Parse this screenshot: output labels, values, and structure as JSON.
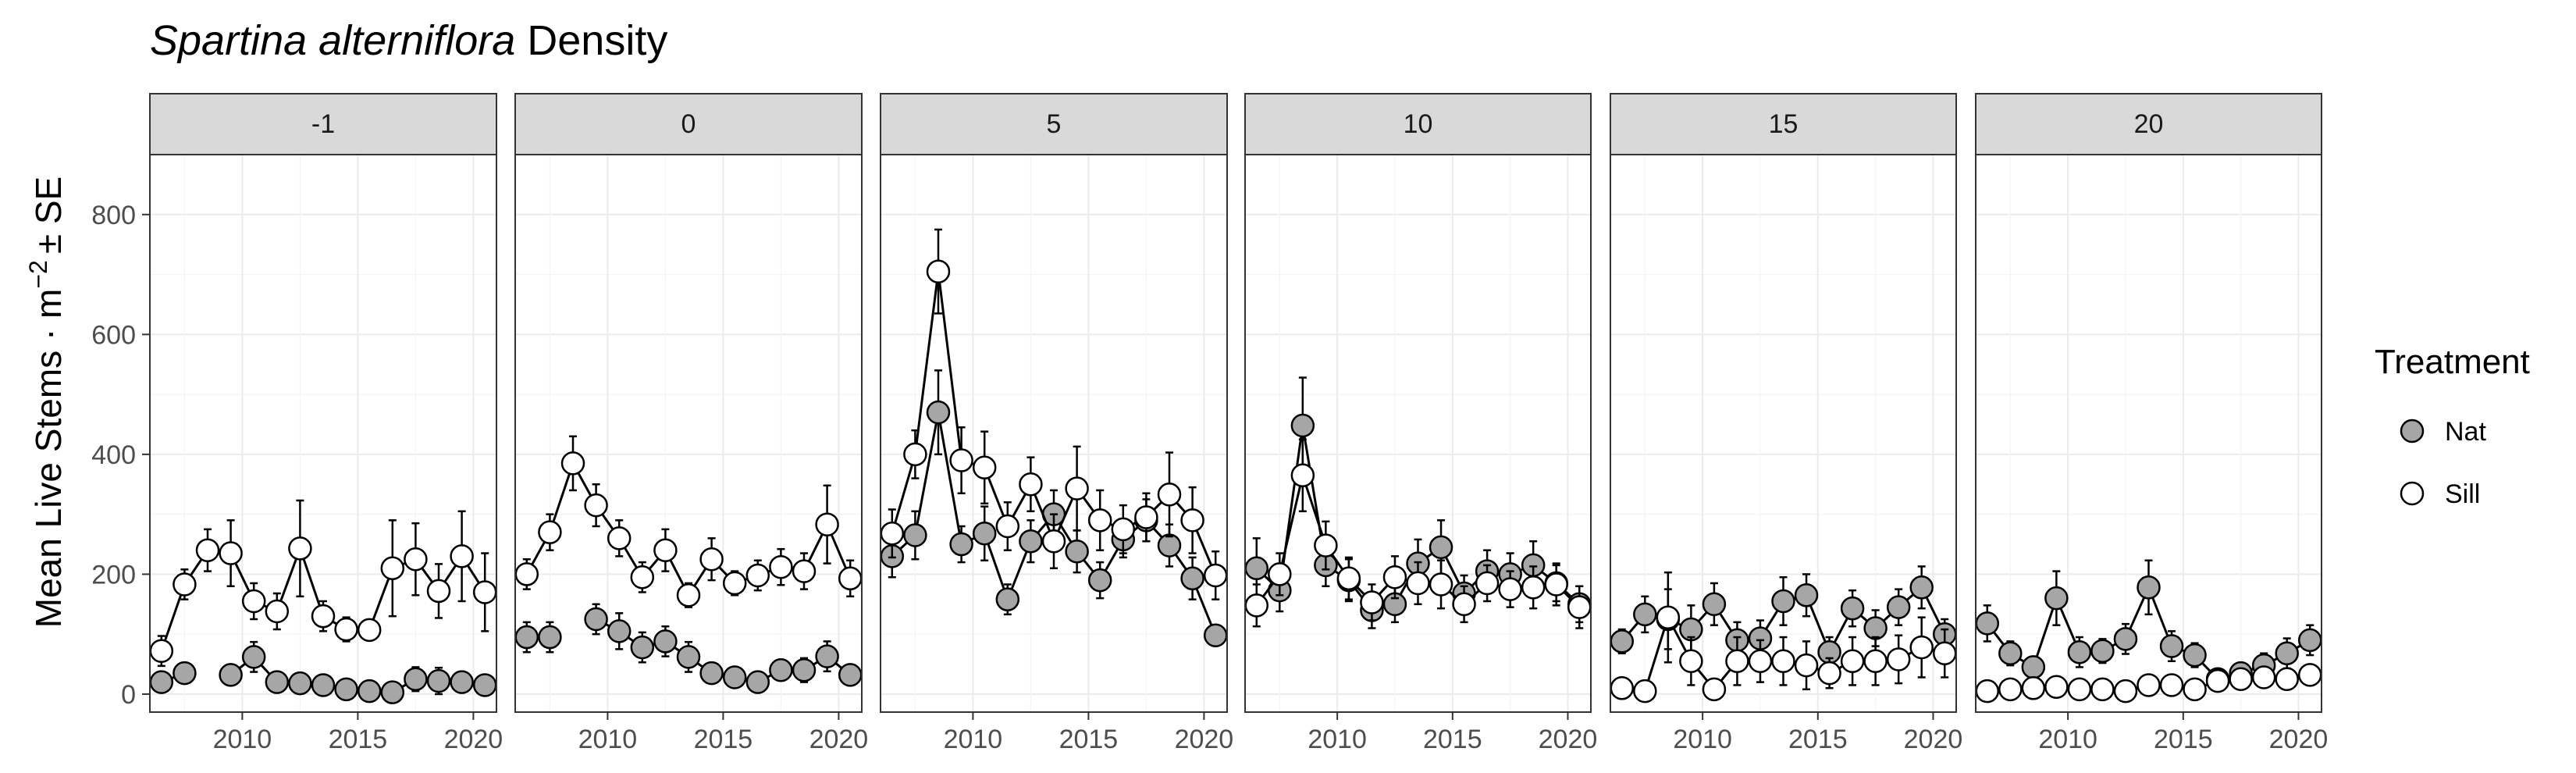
{
  "chart_data": {
    "type": "line",
    "title_italic": "Spartina alterniflora",
    "title_rest": " Density",
    "ylabel": "Mean Live Stems · m",
    "ylabel_sup": "−2",
    "ylabel_tail": "± SE",
    "xlabel": "",
    "xlim": [
      2006,
      2021
    ],
    "ylim": [
      -30,
      900
    ],
    "x_ticks": [
      2010,
      2015,
      2020
    ],
    "y_ticks": [
      0,
      200,
      400,
      600,
      800
    ],
    "grid": true,
    "legend": {
      "title": "Treatment",
      "placement": "right",
      "entries": [
        {
          "name": "Nat",
          "color": "#a6a6a6"
        },
        {
          "name": "Sill",
          "color": "#ffffff"
        }
      ]
    },
    "facets": [
      {
        "label": "-1",
        "series": [
          {
            "name": "Nat",
            "x": [
              2006.5,
              2007.5,
              2009.5,
              2010.5,
              2011.5,
              2012.5,
              2013.5,
              2014.5,
              2015.5,
              2016.5,
              2017.5,
              2018.5,
              2019.5,
              2020.5
            ],
            "y": [
              20,
              35,
              32,
              62,
              20,
              18,
              15,
              8,
              5,
              3,
              25,
              22,
              20,
              15
            ],
            "err": [
              10,
              12,
              10,
              25,
              8,
              8,
              8,
              5,
              4,
              3,
              20,
              22,
              15,
              10
            ],
            "segments": [
              [
                0,
                1
              ],
              [
                2,
                13
              ]
            ]
          },
          {
            "name": "Sill",
            "x": [
              2006.5,
              2007.5,
              2008.5,
              2009.5,
              2010.5,
              2011.5,
              2012.5,
              2013.5,
              2014.5,
              2015.5,
              2016.5,
              2017.5,
              2018.5,
              2019.5,
              2020.5
            ],
            "y": [
              72,
              183,
              240,
              235,
              155,
              138,
              243,
              130,
              108,
              107,
              210,
              225,
              172,
              230,
              170
            ],
            "err": [
              25,
              25,
              35,
              55,
              30,
              30,
              80,
              25,
              20,
              15,
              80,
              60,
              45,
              75,
              65
            ]
          }
        ]
      },
      {
        "label": "0",
        "series": [
          {
            "name": "Nat",
            "x": [
              2006.5,
              2007.5,
              2009.5,
              2010.5,
              2011.5,
              2012.5,
              2013.5,
              2014.5,
              2015.5,
              2016.5,
              2017.5,
              2018.5,
              2019.5,
              2020.5
            ],
            "y": [
              95,
              95,
              125,
              105,
              78,
              88,
              62,
              35,
              28,
              20,
              40,
              40,
              63,
              32
            ],
            "err": [
              25,
              25,
              25,
              30,
              25,
              25,
              25,
              12,
              10,
              8,
              15,
              20,
              25,
              15
            ],
            "segments": [
              [
                0,
                1
              ],
              [
                2,
                13
              ]
            ]
          },
          {
            "name": "Sill",
            "x": [
              2006.5,
              2007.5,
              2008.5,
              2009.5,
              2010.5,
              2011.5,
              2012.5,
              2013.5,
              2014.5,
              2015.5,
              2016.5,
              2017.5,
              2018.5,
              2019.5,
              2020.5
            ],
            "y": [
              200,
              270,
              385,
              315,
              260,
              195,
              240,
              165,
              225,
              185,
              198,
              212,
              205,
              283,
              193
            ],
            "err": [
              25,
              30,
              45,
              35,
              30,
              25,
              35,
              20,
              35,
              20,
              25,
              30,
              30,
              65,
              30
            ]
          }
        ]
      },
      {
        "label": "5",
        "series": [
          {
            "name": "Nat",
            "x": [
              2006.5,
              2007.5,
              2008.5,
              2009.5,
              2010.5,
              2011.5,
              2012.5,
              2013.5,
              2014.5,
              2015.5,
              2016.5,
              2017.5,
              2018.5,
              2019.5,
              2020.5
            ],
            "y": [
              230,
              265,
              470,
              250,
              268,
              158,
              255,
              300,
              238,
              190,
              258,
              290,
              248,
              193,
              98
            ],
            "err": [
              35,
              40,
              70,
              30,
              45,
              25,
              35,
              40,
              35,
              30,
              30,
              35,
              35,
              35,
              15
            ]
          },
          {
            "name": "Sill",
            "x": [
              2006.5,
              2007.5,
              2008.5,
              2009.5,
              2010.5,
              2011.5,
              2012.5,
              2013.5,
              2014.5,
              2015.5,
              2016.5,
              2017.5,
              2018.5,
              2019.5,
              2020.5
            ],
            "y": [
              268,
              400,
              705,
              390,
              378,
              280,
              350,
              255,
              343,
              290,
              275,
              295,
              333,
              290,
              198
            ],
            "err": [
              40,
              40,
              70,
              55,
              60,
              40,
              45,
              45,
              70,
              50,
              40,
              40,
              70,
              55,
              40
            ]
          }
        ]
      },
      {
        "label": "10",
        "series": [
          {
            "name": "Nat",
            "x": [
              2006.5,
              2007.5,
              2008.5,
              2009.5,
              2010.5,
              2011.5,
              2012.5,
              2013.5,
              2014.5,
              2015.5,
              2016.5,
              2017.5,
              2018.5,
              2019.5,
              2020.5
            ],
            "y": [
              210,
              173,
              448,
              215,
              190,
              140,
              150,
              218,
              245,
              168,
              205,
              200,
              215,
              185,
              150
            ],
            "err": [
              50,
              35,
              80,
              35,
              35,
              30,
              30,
              40,
              45,
              30,
              35,
              35,
              40,
              30,
              30
            ]
          },
          {
            "name": "Sill",
            "x": [
              2006.5,
              2007.5,
              2008.5,
              2009.5,
              2010.5,
              2011.5,
              2012.5,
              2013.5,
              2014.5,
              2015.5,
              2016.5,
              2017.5,
              2018.5,
              2019.5,
              2020.5
            ],
            "y": [
              148,
              200,
              365,
              248,
              193,
              153,
              195,
              185,
              183,
              150,
              185,
              175,
              178,
              183,
              145
            ],
            "err": [
              35,
              35,
              60,
              40,
              35,
              30,
              35,
              35,
              40,
              30,
              30,
              30,
              35,
              35,
              35
            ]
          }
        ]
      },
      {
        "label": "15",
        "series": [
          {
            "name": "Nat",
            "x": [
              2006.5,
              2007.5,
              2008.5,
              2009.5,
              2010.5,
              2011.5,
              2012.5,
              2013.5,
              2014.5,
              2015.5,
              2016.5,
              2017.5,
              2018.5,
              2019.5,
              2020.5
            ],
            "y": [
              88,
              133,
              125,
              108,
              150,
              90,
              93,
              155,
              165,
              70,
              143,
              110,
              145,
              178,
              100
            ],
            "err": [
              20,
              30,
              50,
              40,
              35,
              30,
              30,
              40,
              35,
              25,
              30,
              30,
              30,
              35,
              25
            ]
          },
          {
            "name": "Sill",
            "x": [
              2006.5,
              2007.5,
              2008.5,
              2009.5,
              2010.5,
              2011.5,
              2012.5,
              2013.5,
              2014.5,
              2015.5,
              2016.5,
              2017.5,
              2018.5,
              2019.5,
              2020.5
            ],
            "y": [
              10,
              5,
              128,
              55,
              8,
              55,
              55,
              55,
              48,
              35,
              55,
              55,
              58,
              78,
              68
            ],
            "err": [
              5,
              5,
              75,
              40,
              10,
              40,
              35,
              40,
              40,
              25,
              40,
              40,
              40,
              50,
              40
            ]
          }
        ]
      },
      {
        "label": "20",
        "series": [
          {
            "name": "Nat",
            "x": [
              2006.5,
              2007.5,
              2008.5,
              2009.5,
              2010.5,
              2011.5,
              2012.5,
              2013.5,
              2014.5,
              2015.5,
              2016.5,
              2017.5,
              2018.5,
              2019.5,
              2020.5
            ],
            "y": [
              118,
              68,
              45,
              160,
              70,
              72,
              92,
              178,
              80,
              65,
              25,
              35,
              48,
              68,
              90
            ],
            "err": [
              30,
              20,
              15,
              45,
              25,
              20,
              25,
              45,
              25,
              20,
              15,
              15,
              20,
              25,
              25
            ]
          },
          {
            "name": "Sill",
            "x": [
              2006.5,
              2007.5,
              2008.5,
              2009.5,
              2010.5,
              2011.5,
              2012.5,
              2013.5,
              2014.5,
              2015.5,
              2016.5,
              2017.5,
              2018.5,
              2019.5,
              2020.5
            ],
            "y": [
              5,
              8,
              10,
              12,
              8,
              8,
              5,
              15,
              15,
              8,
              22,
              25,
              28,
              25,
              32
            ],
            "err": [
              5,
              5,
              5,
              5,
              5,
              5,
              5,
              8,
              8,
              8,
              10,
              10,
              10,
              10,
              15
            ]
          }
        ]
      }
    ]
  }
}
